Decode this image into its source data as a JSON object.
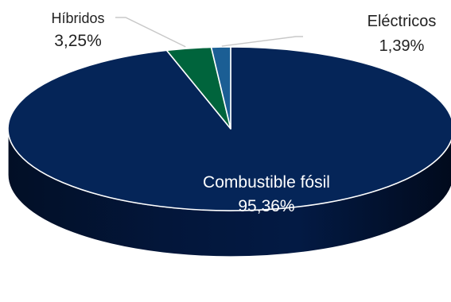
{
  "chart_data": {
    "type": "pie",
    "title": "",
    "style": "3d",
    "slices": [
      {
        "label": "Combustible fósil",
        "value": 95.36,
        "value_label": "95,36%",
        "color": "#052558",
        "label_color": "#ffffff"
      },
      {
        "label": "Híbridos",
        "value": 3.25,
        "value_label": "3,25%",
        "color": "#00643c",
        "label_color": "#222222"
      },
      {
        "label": "Eléctricos",
        "value": 1.39,
        "value_label": "1,39%",
        "color": "#1b5e94",
        "label_color": "#222222"
      }
    ],
    "legend": "none"
  }
}
